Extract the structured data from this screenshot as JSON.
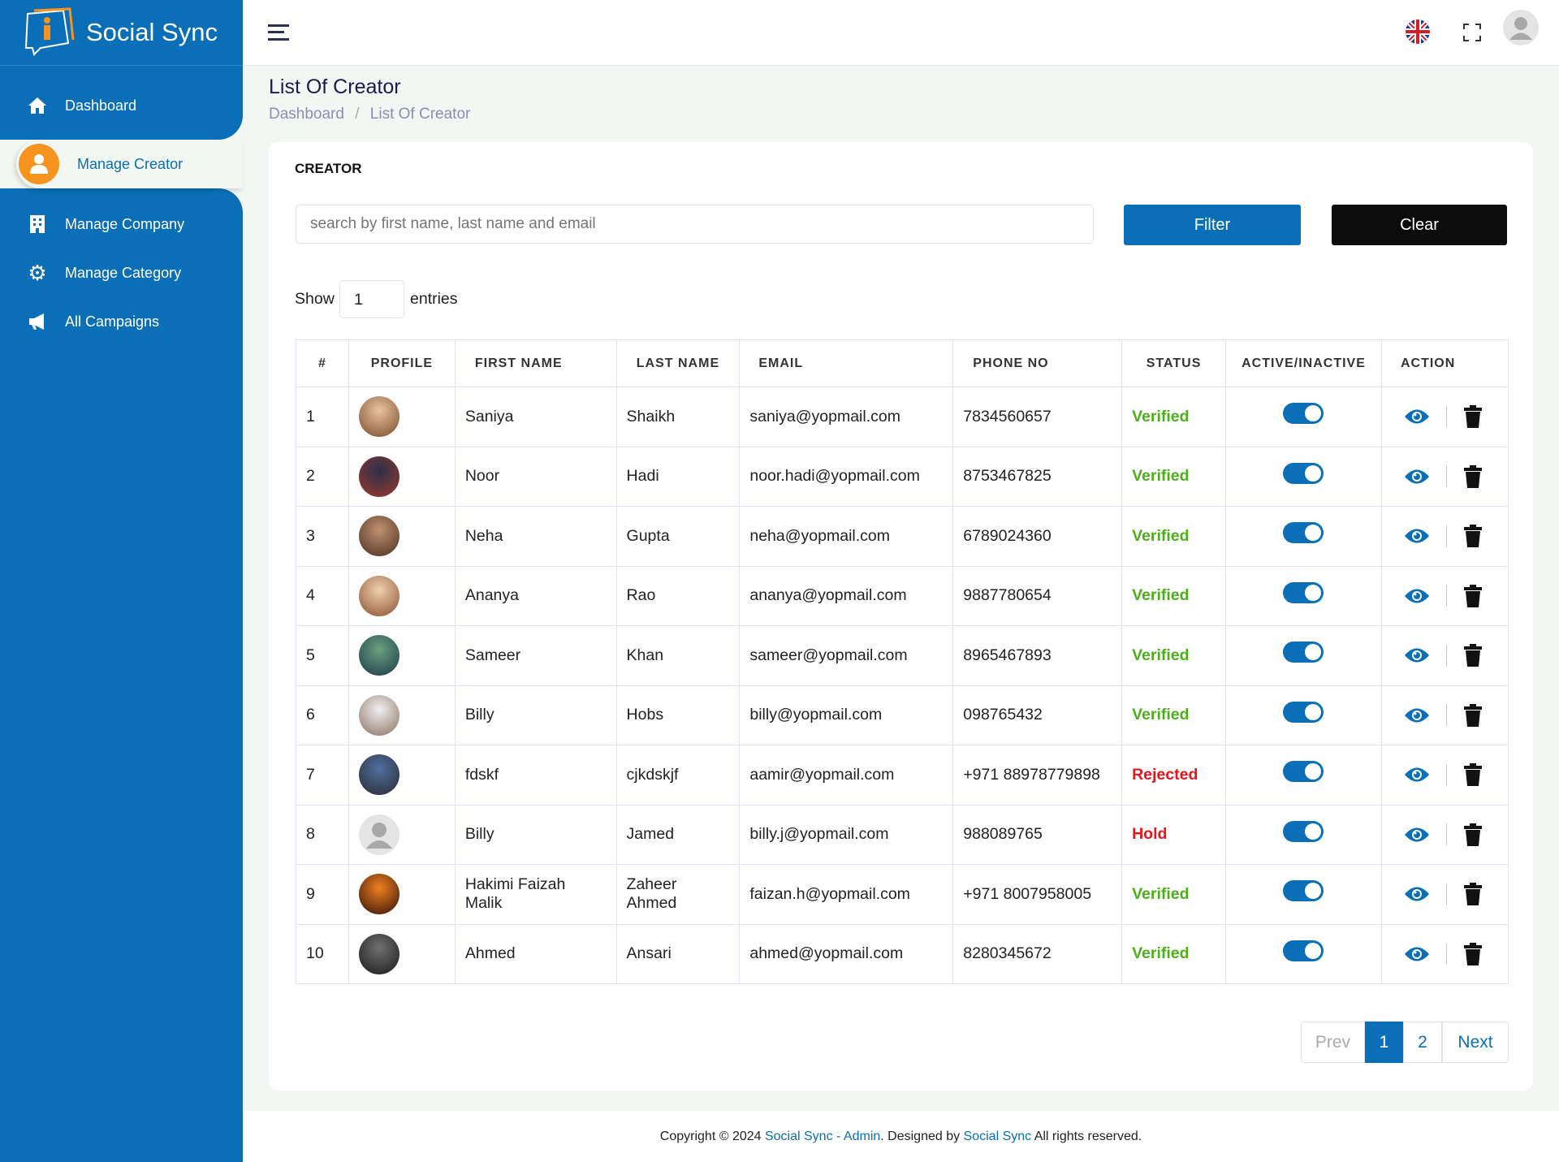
{
  "app": {
    "name": "Social Sync"
  },
  "sidebar": {
    "items": [
      {
        "label": "Dashboard",
        "icon": "home-icon"
      },
      {
        "label": "Manage Creator",
        "icon": "user-icon"
      },
      {
        "label": "Manage Company",
        "icon": "building-icon"
      },
      {
        "label": "Manage Category",
        "icon": "gear-icon"
      },
      {
        "label": "All Campaigns",
        "icon": "megaphone-icon"
      }
    ]
  },
  "page": {
    "title": "List Of Creator",
    "breadcrumb": [
      "Dashboard",
      "List Of Creator"
    ],
    "breadcrumb_sep": "/"
  },
  "card": {
    "title": "CREATOR",
    "search_placeholder": "search by first name, last name and email",
    "filter_label": "Filter",
    "clear_label": "Clear",
    "show_label": "Show",
    "entries_value": "1",
    "entries_label": "entries"
  },
  "table": {
    "headers": [
      "#",
      "PROFILE",
      "FIRST NAME",
      "LAST NAME",
      "EMAIL",
      "PHONE NO",
      "STATUS",
      "ACTIVE/INACTIVE",
      "ACTION"
    ],
    "rows": [
      {
        "n": "1",
        "first": "Saniya",
        "last": "Shaikh",
        "email": "saniya@yopmail.com",
        "phone": "7834560657",
        "status": "Verified",
        "active": true
      },
      {
        "n": "2",
        "first": "Noor",
        "last": "Hadi",
        "email": "noor.hadi@yopmail.com",
        "phone": "8753467825",
        "status": "Verified",
        "active": true
      },
      {
        "n": "3",
        "first": "Neha",
        "last": "Gupta",
        "email": "neha@yopmail.com",
        "phone": "6789024360",
        "status": "Verified",
        "active": true
      },
      {
        "n": "4",
        "first": "Ananya",
        "last": "Rao",
        "email": "ananya@yopmail.com",
        "phone": "9887780654",
        "status": "Verified",
        "active": true
      },
      {
        "n": "5",
        "first": "Sameer",
        "last": "Khan",
        "email": "sameer@yopmail.com",
        "phone": "8965467893",
        "status": "Verified",
        "active": true
      },
      {
        "n": "6",
        "first": "Billy",
        "last": "Hobs",
        "email": "billy@yopmail.com",
        "phone": "098765432",
        "status": "Verified",
        "active": true
      },
      {
        "n": "7",
        "first": "fdskf",
        "last": "cjkdskjf",
        "email": "aamir@yopmail.com",
        "phone": "+971 88978779898",
        "status": "Rejected",
        "active": true
      },
      {
        "n": "8",
        "first": "Billy",
        "last": "Jamed",
        "email": "billy.j@yopmail.com",
        "phone": "988089765",
        "status": "Hold",
        "active": true
      },
      {
        "n": "9",
        "first": "Hakimi Faizah Malik",
        "last": "Zaheer Ahmed",
        "email": "faizan.h@yopmail.com",
        "phone": "+971 8007958005",
        "status": "Verified",
        "active": true
      },
      {
        "n": "10",
        "first": "Ahmed",
        "last": "Ansari",
        "email": "ahmed@yopmail.com",
        "phone": "8280345672",
        "status": "Verified",
        "active": true
      }
    ]
  },
  "pagination": {
    "prev": "Prev",
    "pages": [
      "1",
      "2"
    ],
    "current": "1",
    "next": "Next"
  },
  "footer": {
    "prefix": "Copyright © 2024 ",
    "link1": "Social Sync - Admin",
    "mid": ". Designed by ",
    "link2": "Social Sync",
    "suffix": " All rights reserved."
  },
  "colors": {
    "primary": "#0a6fb6",
    "verified": "#4caf1a",
    "rejected": "#e8141b",
    "accent": "#f7941d"
  }
}
